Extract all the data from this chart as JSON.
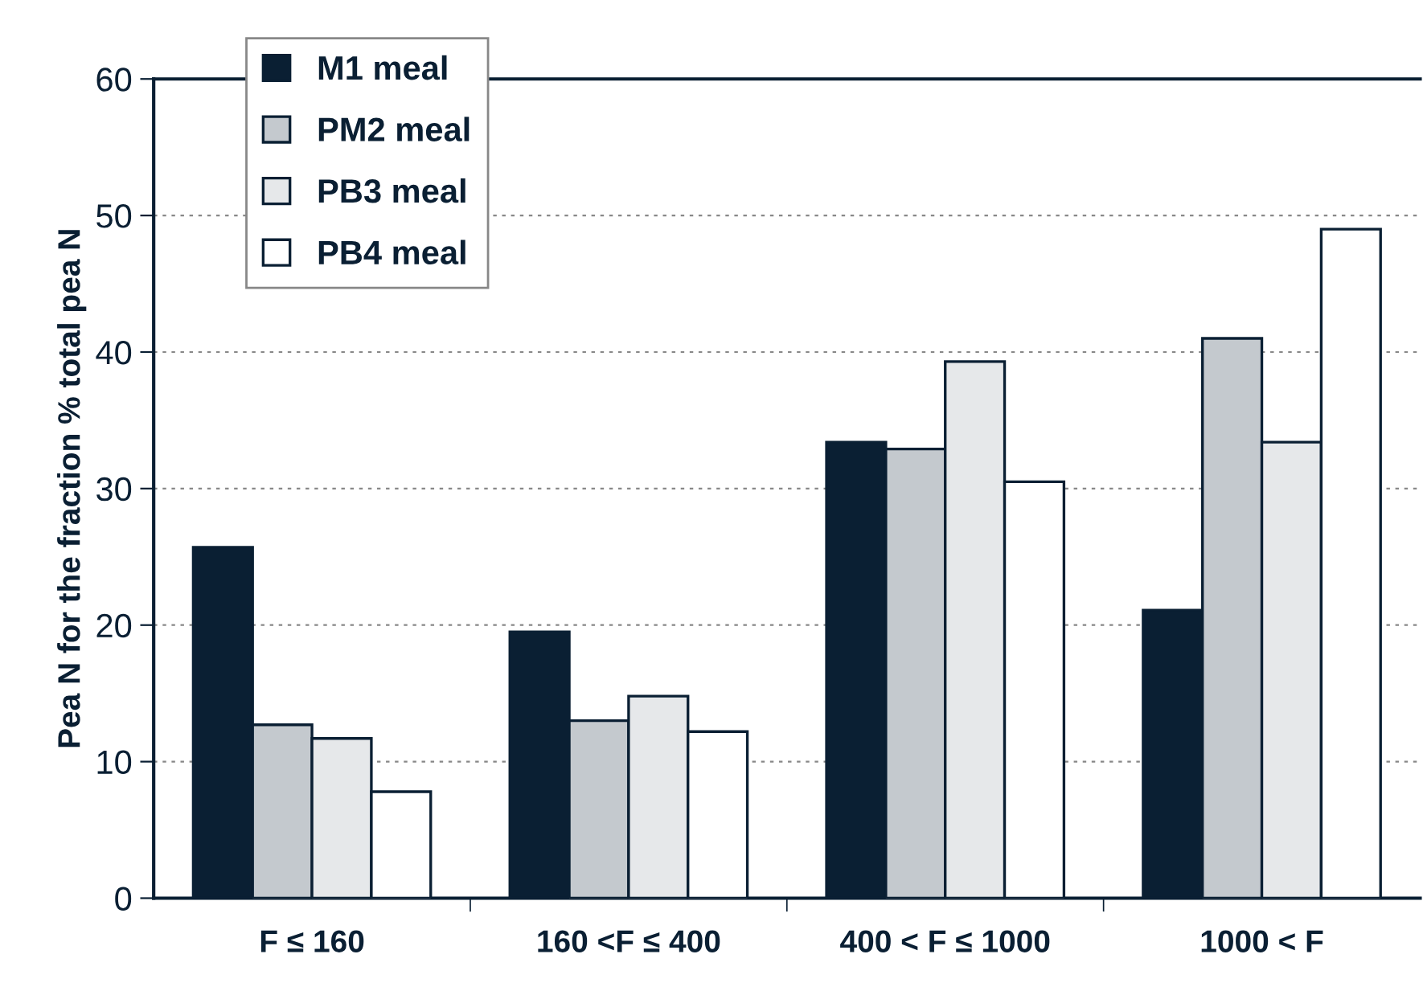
{
  "chart_data": {
    "type": "bar",
    "ylabel": "Pea N for the fraction % total pea N",
    "categories": [
      "F ≤ 160",
      "160 <F ≤ 400",
      "400 < F ≤ 1000",
      "1000 < F"
    ],
    "series": [
      {
        "name": "M1 meal",
        "color": "#0a1f33",
        "values": [
          25.7,
          19.5,
          33.4,
          21.1
        ]
      },
      {
        "name": "PM2 meal",
        "color": "#c4c9ce",
        "values": [
          12.7,
          13.0,
          32.9,
          41.0
        ]
      },
      {
        "name": "PB3 meal",
        "color": "#e6e8ea",
        "values": [
          11.7,
          14.8,
          39.3,
          33.4
        ]
      },
      {
        "name": "PB4 meal",
        "color": "#ffffff",
        "values": [
          7.8,
          12.2,
          30.5,
          49.0
        ]
      }
    ],
    "ylim": [
      0,
      60
    ],
    "yticks": [
      0,
      10,
      20,
      30,
      40,
      50,
      60
    ],
    "grid": "y",
    "legend": "top left"
  }
}
